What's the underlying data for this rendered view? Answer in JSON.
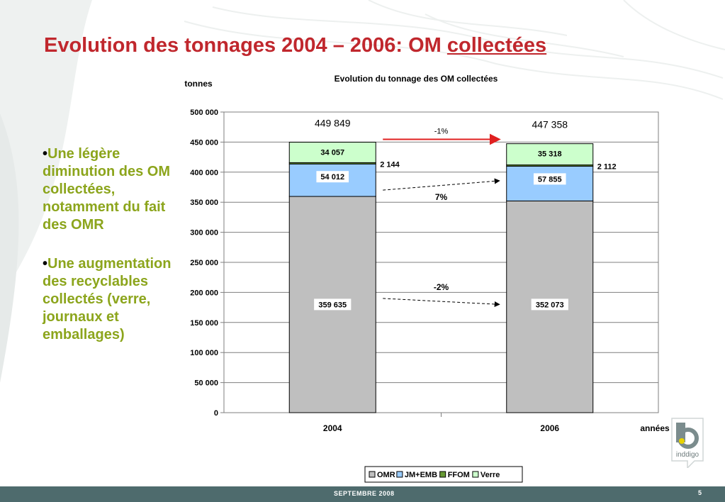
{
  "slide": {
    "title_main": "Evolution des tonnages 2004 – 2006: OM ",
    "title_underlined": "collectées",
    "bullets": [
      "Une légère diminution des OM collectées, notamment du fait des OMR",
      "Une augmentation des recyclables collectés (verre, journaux et emballages)"
    ],
    "bullet_marker": "•",
    "footer_date": "SEPTEMBRE  2008",
    "page_number": "5",
    "logo_text": "inddigo"
  },
  "chart_data": {
    "type": "bar",
    "stacked": true,
    "title": "Evolution du tonnage des OM collectées",
    "ylabel": "tonnes",
    "xlabel": "années",
    "categories": [
      "2004",
      "2006"
    ],
    "ylim": [
      0,
      500000
    ],
    "y_ticks": [
      "0",
      "50 000",
      "100 000",
      "150 000",
      "200 000",
      "250 000",
      "300 000",
      "350 000",
      "400 000",
      "450 000",
      "500 000"
    ],
    "series": [
      {
        "name": "OMR",
        "color": "#bfbfbf",
        "values": [
          359635,
          352073
        ],
        "labels": [
          "359 635",
          "352 073"
        ]
      },
      {
        "name": "JM+EMB",
        "color": "#99ccff",
        "values": [
          54012,
          57855
        ],
        "labels": [
          "54 012",
          "57 855"
        ]
      },
      {
        "name": "FFOM",
        "color": "#669933",
        "values": [
          2144,
          2112
        ],
        "labels": [
          "2 144",
          "2 112"
        ]
      },
      {
        "name": "Verre",
        "color": "#ccffcc",
        "values": [
          34057,
          35318
        ],
        "labels": [
          "34 057",
          "35 318"
        ]
      }
    ],
    "totals": [
      "449 849",
      "447 358"
    ],
    "annotations": [
      {
        "text": "-1%",
        "between": "totals",
        "style": "red-arrow"
      },
      {
        "text": "7%",
        "between": "JM+EMB",
        "style": "dashed-arrow"
      },
      {
        "text": "-2%",
        "between": "OMR",
        "style": "dashed-arrow"
      }
    ],
    "grid": true,
    "legend": "bottom"
  }
}
